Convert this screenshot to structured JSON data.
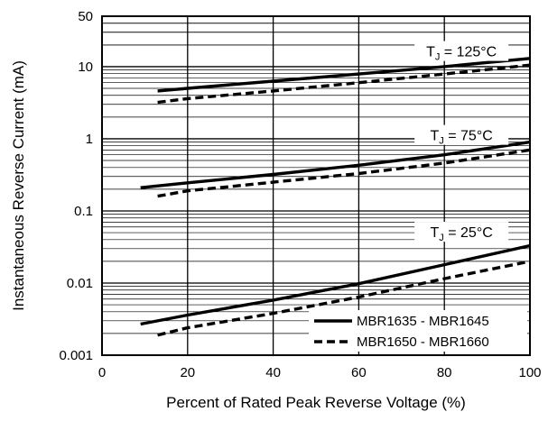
{
  "chart_data": {
    "type": "line",
    "title": "",
    "xlabel": "Percent of Rated Peak Reverse Voltage (%)",
    "ylabel": "Instantaneous Reverse Current (mA)",
    "xlim": [
      0,
      100
    ],
    "ylim": [
      0.001,
      50
    ],
    "yscale": "log",
    "grid": true,
    "x_ticks": [
      0,
      20,
      40,
      60,
      80,
      100
    ],
    "x_tick_labels": [
      "0",
      "20",
      "40",
      "60",
      "80",
      "100"
    ],
    "y_ticks": [
      0.001,
      0.01,
      0.1,
      1,
      10,
      50
    ],
    "y_tick_labels": [
      "0.001",
      "0.01",
      "0.1",
      "1",
      "10",
      "50"
    ],
    "legend_position": "bottom-right",
    "legend": [
      {
        "label": "MBR1635 - MBR1645",
        "style": "solid"
      },
      {
        "label": "MBR1650 - MBR1660",
        "style": "dashed"
      }
    ],
    "annotations": [
      {
        "main": "T",
        "sub": "J",
        "rest": " = 125°C",
        "x": 84,
        "y": 16
      },
      {
        "main": "T",
        "sub": "J",
        "rest": " = 75°C",
        "x": 84,
        "y": 1.1
      },
      {
        "main": "T",
        "sub": "J",
        "rest": " = 25°C",
        "x": 84,
        "y": 0.05
      }
    ],
    "series": [
      {
        "group": "MBR1635 - MBR1645",
        "condition": "TJ = 125°C",
        "style": "solid",
        "x": [
          13,
          20,
          40,
          60,
          80,
          100
        ],
        "y": [
          4.6,
          5.0,
          6.3,
          7.9,
          10.0,
          13.0
        ]
      },
      {
        "group": "MBR1650 - MBR1660",
        "condition": "TJ = 125°C",
        "style": "dashed",
        "x": [
          13,
          20,
          40,
          60,
          80,
          100
        ],
        "y": [
          3.2,
          3.6,
          4.6,
          6.0,
          7.9,
          10.5
        ]
      },
      {
        "group": "MBR1635 - MBR1645",
        "condition": "TJ = 75°C",
        "style": "solid",
        "x": [
          9,
          20,
          40,
          60,
          80,
          100
        ],
        "y": [
          0.21,
          0.245,
          0.32,
          0.43,
          0.6,
          0.9
        ]
      },
      {
        "group": "MBR1650 - MBR1660",
        "condition": "TJ = 75°C",
        "style": "dashed",
        "x": [
          13,
          20,
          40,
          60,
          80,
          100
        ],
        "y": [
          0.16,
          0.19,
          0.25,
          0.33,
          0.46,
          0.7
        ]
      },
      {
        "group": "MBR1635 - MBR1645",
        "condition": "TJ = 25°C",
        "style": "solid",
        "x": [
          9,
          20,
          40,
          60,
          80,
          100
        ],
        "y": [
          0.0027,
          0.0036,
          0.0058,
          0.0098,
          0.018,
          0.033
        ]
      },
      {
        "group": "MBR1650 - MBR1660",
        "condition": "TJ = 25°C",
        "style": "dashed",
        "x": [
          13,
          20,
          40,
          60,
          80,
          100
        ],
        "y": [
          0.0019,
          0.0024,
          0.0038,
          0.0064,
          0.0115,
          0.02
        ]
      }
    ]
  }
}
